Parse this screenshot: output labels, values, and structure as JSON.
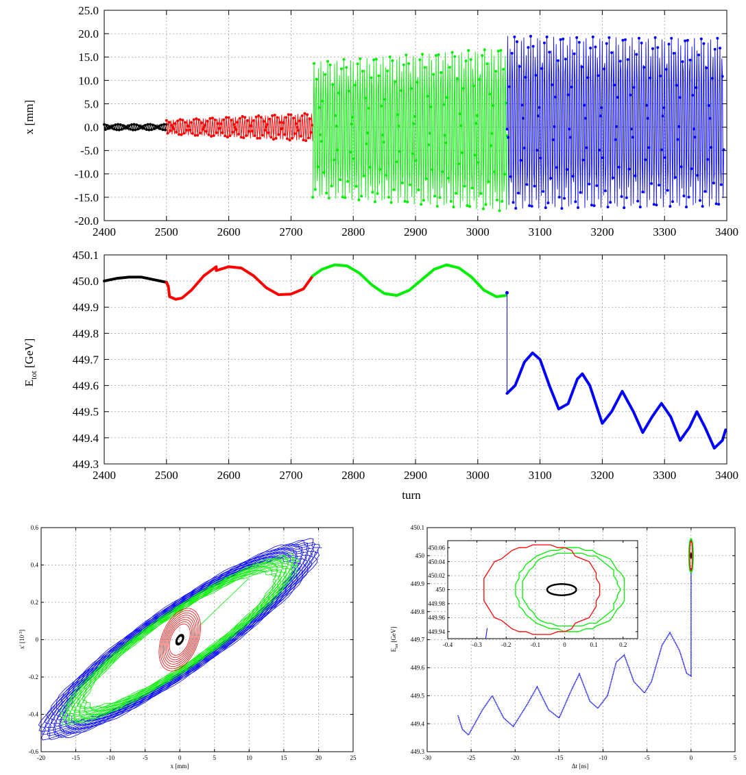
{
  "colors": {
    "black_seg": "#000000",
    "red_seg": "#ff0000",
    "green_seg": "#00ee00",
    "blue_seg": "#0000ff",
    "grid": "#9a9a9a"
  },
  "chart_data": [
    {
      "id": "top",
      "type": "line",
      "title": "",
      "xlabel": "",
      "ylabel": "x [mm]",
      "xlim": [
        2400,
        3400
      ],
      "ylim": [
        -20,
        25
      ],
      "xticks": [
        2400,
        2500,
        2600,
        2700,
        2800,
        2900,
        3000,
        3100,
        3200,
        3300,
        3400
      ],
      "yticks": [
        -20,
        -15,
        -10,
        -5,
        0,
        5,
        10,
        15,
        20,
        25
      ],
      "xtick_labels": [
        "2400",
        "2500",
        "2600",
        "2700",
        "2800",
        "2900",
        "3000",
        "3100",
        "3200",
        "3300",
        "3400"
      ],
      "ytick_labels": [
        "-20.0",
        "-15.0",
        "-10.0",
        "-5.0",
        "0.0",
        "5.0",
        "10.0",
        "15.0",
        "20.0",
        "25.0"
      ],
      "grid": true,
      "series": [
        {
          "color": "black",
          "x_range": [
            2400,
            2500
          ],
          "amplitude": [
            0.6,
            0.6
          ],
          "offset": 0
        },
        {
          "color": "red",
          "x_range": [
            2500,
            2735
          ],
          "amplitude": [
            1.5,
            3.0
          ],
          "offset": 0
        },
        {
          "color": "green",
          "x_range": [
            2735,
            3047
          ],
          "amplitude": [
            14.5,
            17.5
          ],
          "offset": -0.5
        },
        {
          "color": "blue",
          "x_range": [
            3047,
            3395
          ],
          "amplitude": [
            18.5,
            18.0
          ],
          "offset": 1.0
        }
      ]
    },
    {
      "id": "energy",
      "type": "line",
      "title": "",
      "xlabel": "turn",
      "ylabel": "E_tot [GeV]",
      "ylabel_main": "E",
      "ylabel_sub": "tot",
      "ylabel_unit": "[GeV]",
      "xlim": [
        2400,
        3400
      ],
      "ylim": [
        449.3,
        450.1
      ],
      "xticks": [
        2400,
        2500,
        2600,
        2700,
        2800,
        2900,
        3000,
        3100,
        3200,
        3300,
        3400
      ],
      "yticks": [
        449.3,
        449.4,
        449.5,
        449.6,
        449.7,
        449.8,
        449.9,
        450.0,
        450.1
      ],
      "xtick_labels": [
        "2400",
        "2500",
        "2600",
        "2700",
        "2800",
        "2900",
        "3000",
        "3100",
        "3200",
        "3300",
        "3400"
      ],
      "ytick_labels": [
        "449.3",
        "449.4",
        "449.5",
        "449.6",
        "449.7",
        "449.8",
        "449.9",
        "450.0",
        "450.1"
      ],
      "grid": true,
      "series": [
        {
          "color": "black",
          "points": [
            [
              2400,
              450.0
            ],
            [
              2420,
              450.01
            ],
            [
              2440,
              450.015
            ],
            [
              2460,
              450.015
            ],
            [
              2480,
              450.005
            ],
            [
              2500,
              449.995
            ]
          ]
        },
        {
          "color": "red",
          "points": [
            [
              2500,
              449.995
            ],
            [
              2503,
              449.98
            ],
            [
              2505,
              449.94
            ],
            [
              2515,
              449.93
            ],
            [
              2525,
              449.935
            ],
            [
              2540,
              449.965
            ],
            [
              2560,
              450.02
            ],
            [
              2580,
              450.055
            ],
            [
              2580,
              450.04
            ],
            [
              2600,
              450.055
            ],
            [
              2620,
              450.05
            ],
            [
              2640,
              450.02
            ],
            [
              2660,
              449.975
            ],
            [
              2680,
              449.948
            ],
            [
              2700,
              449.95
            ],
            [
              2720,
              449.97
            ],
            [
              2735,
              450.02
            ]
          ]
        },
        {
          "color": "green",
          "points": [
            [
              2735,
              450.02
            ],
            [
              2750,
              450.045
            ],
            [
              2770,
              450.062
            ],
            [
              2790,
              450.058
            ],
            [
              2810,
              450.03
            ],
            [
              2830,
              449.985
            ],
            [
              2850,
              449.952
            ],
            [
              2870,
              449.945
            ],
            [
              2890,
              449.965
            ],
            [
              2910,
              450.005
            ],
            [
              2930,
              450.045
            ],
            [
              2950,
              450.062
            ],
            [
              2970,
              450.05
            ],
            [
              2990,
              450.015
            ],
            [
              3010,
              449.965
            ],
            [
              3030,
              449.94
            ],
            [
              3045,
              449.945
            ]
          ]
        },
        {
          "color": "blue",
          "points": [
            [
              3047,
              449.955
            ],
            [
              3047,
              449.57
            ],
            [
              3060,
              449.6
            ],
            [
              3075,
              449.69
            ],
            [
              3088,
              449.725
            ],
            [
              3100,
              449.7
            ],
            [
              3115,
              449.6
            ],
            [
              3130,
              449.51
            ],
            [
              3145,
              449.53
            ],
            [
              3160,
              449.625
            ],
            [
              3168,
              449.645
            ],
            [
              3180,
              449.6
            ],
            [
              3200,
              449.455
            ],
            [
              3215,
              449.5
            ],
            [
              3232,
              449.578
            ],
            [
              3250,
              449.5
            ],
            [
              3265,
              449.42
            ],
            [
              3280,
              449.48
            ],
            [
              3295,
              449.532
            ],
            [
              3310,
              449.48
            ],
            [
              3325,
              449.39
            ],
            [
              3340,
              449.44
            ],
            [
              3352,
              449.5
            ],
            [
              3365,
              449.44
            ],
            [
              3380,
              449.36
            ],
            [
              3393,
              449.39
            ],
            [
              3398,
              449.43
            ]
          ]
        }
      ]
    },
    {
      "id": "phase-x",
      "type": "line",
      "title": "",
      "xlabel": "x [mm]",
      "ylabel": "x' [10^-3]",
      "ylabel_main": "x' [10",
      "ylabel_sup": "-3",
      "ylabel_end": "]",
      "xlim": [
        -20,
        25
      ],
      "ylim": [
        -0.6,
        0.6
      ],
      "xticks": [
        -20,
        -15,
        -10,
        -5,
        0,
        5,
        10,
        15,
        20,
        25
      ],
      "yticks": [
        -0.6,
        -0.4,
        -0.2,
        0,
        0.2,
        0.4,
        0.6
      ],
      "xtick_labels": [
        "-20",
        "-15",
        "-10",
        "-5",
        "0",
        "5",
        "10",
        "15",
        "20",
        "25"
      ],
      "ytick_labels": [
        "-0.6",
        "-0.4",
        "-0.2",
        "0",
        "0.2",
        "0.4",
        "0.6"
      ],
      "grid": true,
      "series": [
        {
          "color": "blue",
          "ellipse": {
            "a": 20.0,
            "b": 0.1,
            "tilt_deg": 0,
            "slope": 0.024,
            "rings": [
              0.82,
              1.0
            ]
          }
        },
        {
          "color": "green",
          "ellipse": {
            "a": 17.0,
            "b": 0.085,
            "tilt_deg": 0,
            "slope": 0.024,
            "rings": [
              0.8,
              1.0
            ]
          }
        },
        {
          "color": "red",
          "ellipse": {
            "a": 3.0,
            "b": 0.07,
            "tilt_deg": 0,
            "slope": 0.022,
            "rings": [
              0.5,
              1.0
            ]
          }
        },
        {
          "color": "black",
          "ellipse": {
            "a": 0.6,
            "b": 0.012,
            "tilt_deg": 0,
            "slope": 0.022,
            "rings": [
              0.6,
              1.0
            ]
          }
        }
      ]
    },
    {
      "id": "phase-long",
      "type": "line",
      "title": "",
      "xlabel": "Δt [ns]",
      "ylabel": "E_tot [GeV]",
      "ylabel_main": "E",
      "ylabel_sub": "tot",
      "ylabel_unit": "[GeV]",
      "xlim": [
        -30,
        5
      ],
      "ylim": [
        449.3,
        450.1
      ],
      "xticks": [
        -30,
        -25,
        -20,
        -15,
        -10,
        -5,
        0,
        5
      ],
      "yticks": [
        449.3,
        449.4,
        449.5,
        449.6,
        449.7,
        449.8,
        449.9,
        450,
        450.1
      ],
      "xtick_labels": [
        "-30",
        "-25",
        "-20",
        "-15",
        "-10",
        "-5",
        "0",
        "5"
      ],
      "ytick_labels": [
        "449.3",
        "449.4",
        "449.5",
        "449.6",
        "449.7",
        "449.8",
        "449.9",
        "450",
        "450.1"
      ],
      "grid": true,
      "series": [
        {
          "color": "blue",
          "points": [
            [
              0,
              449.955
            ],
            [
              0,
              449.57
            ],
            [
              -0.5,
              449.58
            ],
            [
              -1.3,
              449.66
            ],
            [
              -2.4,
              449.725
            ],
            [
              -3.3,
              449.68
            ],
            [
              -4.5,
              449.55
            ],
            [
              -5.3,
              449.51
            ],
            [
              -6.5,
              449.55
            ],
            [
              -7.6,
              449.645
            ],
            [
              -8.5,
              449.62
            ],
            [
              -9.5,
              449.5
            ],
            [
              -10.6,
              449.455
            ],
            [
              -11.5,
              449.48
            ],
            [
              -12.7,
              449.578
            ],
            [
              -13.6,
              449.52
            ],
            [
              -15,
              449.42
            ],
            [
              -16.2,
              449.45
            ],
            [
              -17.5,
              449.532
            ],
            [
              -18.6,
              449.47
            ],
            [
              -20.2,
              449.39
            ],
            [
              -21.3,
              449.42
            ],
            [
              -22.6,
              449.5
            ],
            [
              -23.7,
              449.45
            ],
            [
              -25.3,
              449.36
            ],
            [
              -26,
              449.38
            ],
            [
              -26.5,
              449.43
            ]
          ]
        }
      ],
      "inset": {
        "xlim": [
          -0.4,
          0.25
        ],
        "ylim": [
          449.93,
          450.07
        ],
        "xticks": [
          -0.4,
          -0.3,
          -0.2,
          -0.1,
          0,
          0.1,
          0.2
        ],
        "yticks": [
          449.94,
          449.96,
          449.98,
          450,
          450.02,
          450.04,
          450.06
        ],
        "xtick_labels": [
          "-0.4",
          "-0.3",
          "-0.2",
          "-0.1",
          "0",
          "0.1",
          "0.2"
        ],
        "ytick_labels": [
          "449.94",
          "449.96",
          "449.98",
          "450",
          "450.02",
          "450.04",
          "450.06"
        ],
        "series": [
          {
            "color": "green",
            "ellipse": {
              "cx": 0.02,
              "cy": 450.0,
              "rx": 0.185,
              "ry": 0.06,
              "rings": [
                0.9,
                1.0
              ]
            }
          },
          {
            "color": "red",
            "ellipse": {
              "cx": -0.08,
              "cy": 450.0,
              "rx": 0.2,
              "ry": 0.063,
              "rings": [
                1.0
              ]
            }
          },
          {
            "color": "black",
            "ellipse": {
              "cx": -0.01,
              "cy": 450.0,
              "rx": 0.05,
              "ry": 0.008,
              "rings": [
                1.0
              ]
            }
          }
        ]
      }
    }
  ]
}
